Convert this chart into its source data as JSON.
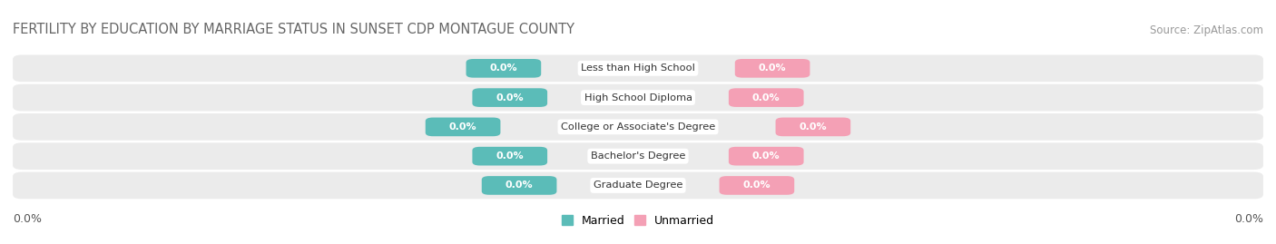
{
  "title": "FERTILITY BY EDUCATION BY MARRIAGE STATUS IN SUNSET CDP MONTAGUE COUNTY",
  "source": "Source: ZipAtlas.com",
  "categories": [
    "Less than High School",
    "High School Diploma",
    "College or Associate's Degree",
    "Bachelor's Degree",
    "Graduate Degree"
  ],
  "married_values": [
    0.0,
    0.0,
    0.0,
    0.0,
    0.0
  ],
  "unmarried_values": [
    0.0,
    0.0,
    0.0,
    0.0,
    0.0
  ],
  "married_color": "#5bbcb8",
  "unmarried_color": "#f4a0b5",
  "row_bg_color": "#ebebeb",
  "label_married": "Married",
  "label_unmarried": "Unmarried",
  "title_fontsize": 10.5,
  "source_fontsize": 8.5,
  "tick_label": "0.0%",
  "background_color": "#ffffff"
}
